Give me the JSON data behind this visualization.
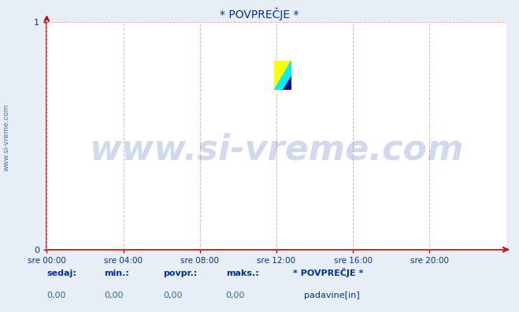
{
  "title": "* POVPREČJE *",
  "title_color": "#003399",
  "title_fontsize": 10,
  "bg_color": "#e8eef5",
  "plot_bg_color": "#ffffff",
  "xlim": [
    0,
    1
  ],
  "ylim": [
    0,
    1
  ],
  "xtick_labels": [
    "sre 00:00",
    "sre 04:00",
    "sre 08:00",
    "sre 12:00",
    "sre 16:00",
    "sre 20:00"
  ],
  "xtick_positions": [
    0.0,
    0.1667,
    0.3333,
    0.5,
    0.6667,
    0.8333
  ],
  "ytick_labels": [
    "0",
    "1"
  ],
  "ytick_positions": [
    0,
    1
  ],
  "grid_color": "#ffaaaa",
  "axis_color": "#cc0000",
  "tick_color": "#003399",
  "watermark_text": "www.si-vreme.com",
  "watermark_color": "#003399",
  "watermark_alpha": 0.18,
  "watermark_fontsize": 32,
  "sidebar_text": "www.si-vreme.com",
  "sidebar_color": "#4477aa",
  "sidebar_fontsize": 6.5,
  "bottom_labels": [
    "sedaj:",
    "min.:",
    "povpr.:",
    "maks.:"
  ],
  "bottom_label_color": "#003399",
  "bottom_values": [
    "0,00",
    "0,00",
    "0,00",
    "0,00"
  ],
  "bottom_value_color": "#336699",
  "bottom_series_label": "* POVPREČJE *",
  "bottom_series_value": "padavine[in]",
  "bottom_series_color": "#003399",
  "legend_box_color": "#0000cc",
  "logo_yellow": "#ffff00",
  "logo_cyan": "#00eeff",
  "logo_blue": "#000099"
}
